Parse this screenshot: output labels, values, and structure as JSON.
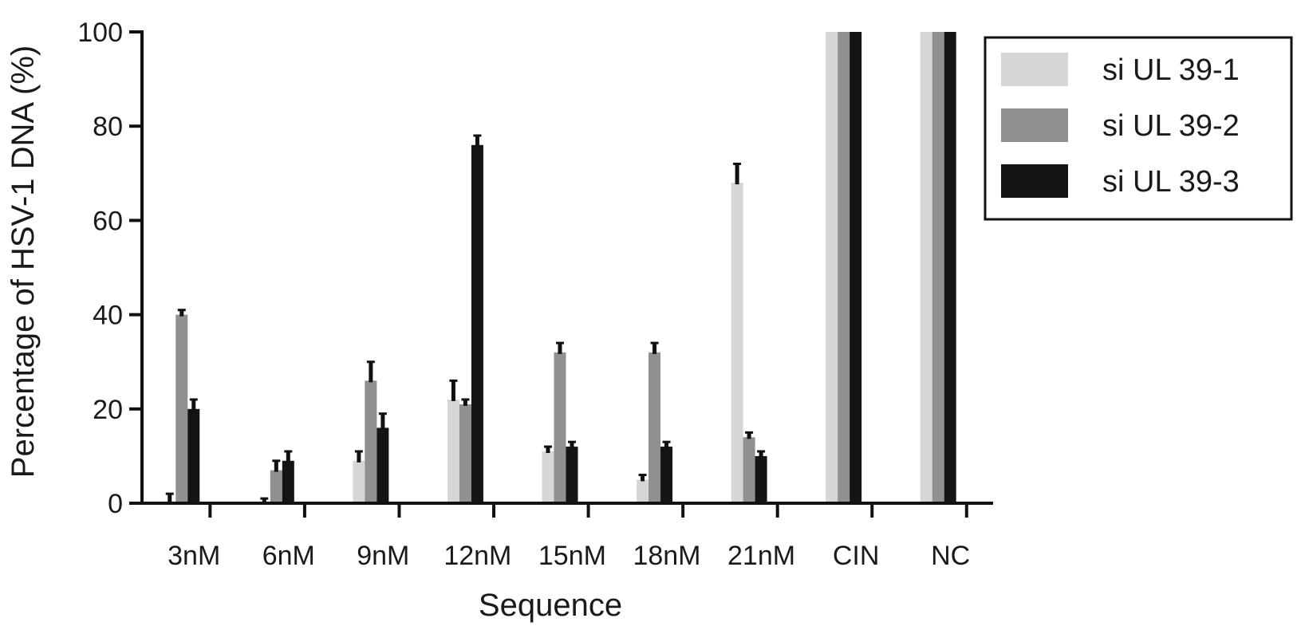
{
  "chart_data": {
    "type": "bar",
    "title": "",
    "xlabel": "Sequence",
    "ylabel": "Percentage of HSV-1 DNA (%)",
    "ylim": [
      0,
      100
    ],
    "yticks": [
      "0",
      "20",
      "40",
      "60",
      "80",
      "100"
    ],
    "categories": [
      "3nM",
      "6nM",
      "9nM",
      "12nM",
      "15nM",
      "18nM",
      "21nM",
      "CIN",
      "NC"
    ],
    "legend_position": "top-right",
    "grid": false,
    "series": [
      {
        "name": "si UL 39-1",
        "color": "#d4d6d8",
        "values": [
          0,
          0,
          9,
          22,
          11,
          5,
          68,
          100,
          100
        ],
        "errors": [
          2,
          1,
          2,
          4,
          1,
          1,
          4,
          0,
          0
        ]
      },
      {
        "name": "si UL 39-2",
        "color": "#8e9092",
        "values": [
          40,
          7,
          26,
          21,
          32,
          32,
          14,
          100,
          100
        ],
        "errors": [
          1,
          2,
          4,
          1,
          2,
          2,
          1,
          0,
          0
        ]
      },
      {
        "name": "si UL 39-3",
        "color": "#141414",
        "values": [
          20,
          9,
          16,
          76,
          12,
          12,
          10,
          100,
          100
        ],
        "errors": [
          2,
          2,
          3,
          2,
          1,
          1,
          1,
          0,
          0
        ]
      }
    ]
  }
}
